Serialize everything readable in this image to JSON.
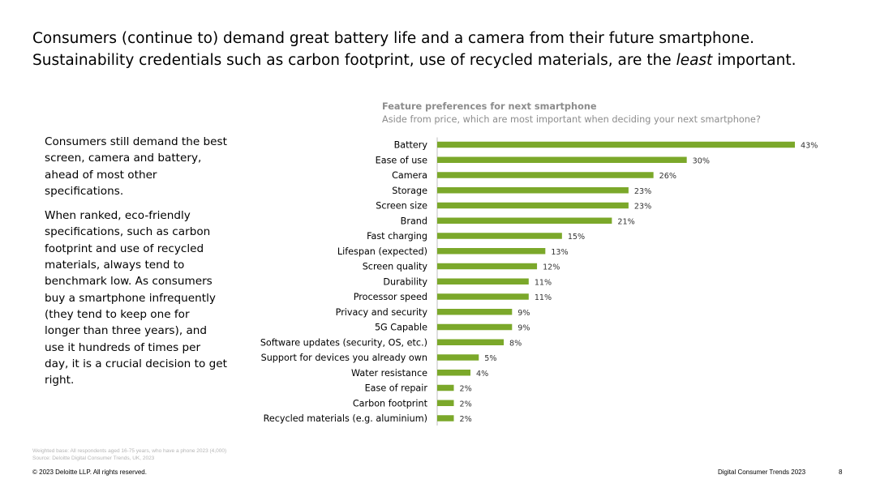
{
  "headline": {
    "line1": "Consumers (continue to) demand great battery life and a camera from their future smartphone.",
    "line2_before": "Sustainability credentials such as carbon footprint, use of recycled materials, are the ",
    "line2_em": "least",
    "line2_after": " important."
  },
  "body": {
    "para1": "Consumers still demand the best screen, camera and battery, ahead of most other specifications.",
    "para2": "When ranked, eco-friendly specifications, such as carbon footprint and use of recycled materials, always tend to benchmark low. As consumers buy a smartphone infrequently (they tend to keep one for longer than three years), and use it hundreds of times per day, it is a crucial decision to get right."
  },
  "chart_data": {
    "type": "bar",
    "orientation": "horizontal",
    "title": "Feature preferences for next smartphone",
    "subtitle": "Aside from price, which are most important when deciding your next smartphone?",
    "categories": [
      "Battery",
      "Ease of use",
      "Camera",
      "Storage",
      "Screen size",
      "Brand",
      "Fast charging",
      "Lifespan (expected)",
      "Screen quality",
      "Durability",
      "Processor speed",
      "Privacy and security",
      "5G Capable",
      "Software updates (security, OS, etc.)",
      "Support for devices you already own",
      "Water resistance",
      "Ease of repair",
      "Carbon footprint",
      "Recycled materials (e.g. aluminium)"
    ],
    "values": [
      43,
      30,
      26,
      23,
      23,
      21,
      15,
      13,
      12,
      11,
      11,
      9,
      9,
      8,
      5,
      4,
      2,
      2,
      2
    ],
    "value_labels": [
      "43%",
      "30%",
      "26%",
      "23%",
      "23%",
      "21%",
      "15%",
      "13%",
      "12%",
      "11%",
      "11%",
      "9%",
      "9%",
      "8%",
      "5%",
      "4%",
      "2%",
      "2%",
      "2%"
    ],
    "xlim": [
      0,
      43
    ],
    "bar_color": "#7ba82a",
    "grid": false
  },
  "footnotes": {
    "base": "Weighted base: All respondents aged 16-75 years, who have a phone 2023 (4,000)",
    "source": "Source: Deloitte Digital Consumer Trends, UK, 2023"
  },
  "footer": {
    "copyright": "© 2023 Deloitte LLP. All rights reserved.",
    "report": "Digital Consumer Trends 2023",
    "page_number": "8"
  }
}
